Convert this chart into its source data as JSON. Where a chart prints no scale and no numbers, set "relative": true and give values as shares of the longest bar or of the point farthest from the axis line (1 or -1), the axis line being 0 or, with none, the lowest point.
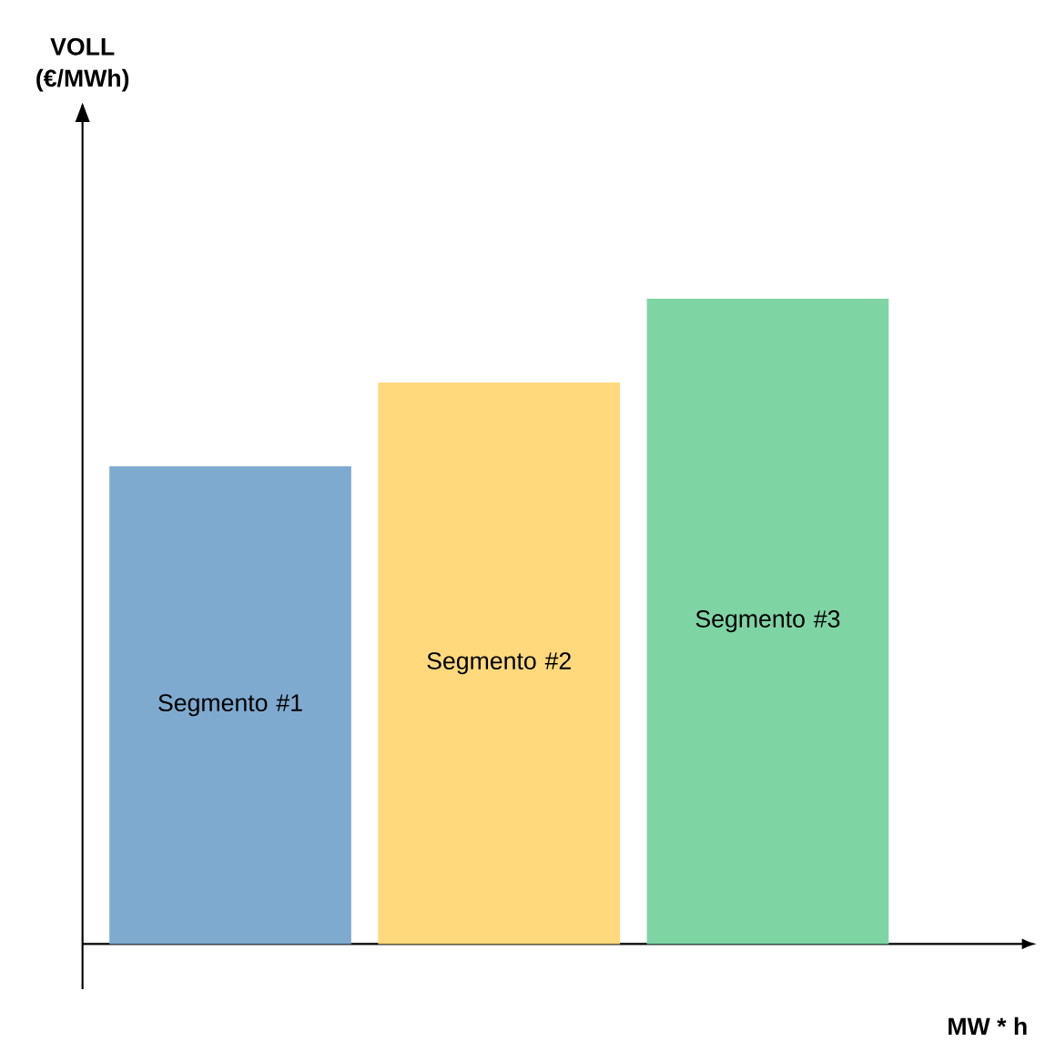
{
  "chart_data": {
    "type": "bar",
    "relative": true,
    "categories": [
      "Segmento #1",
      "Segmento #2",
      "Segmento #3"
    ],
    "values": [
      0.74,
      0.87,
      1.0
    ],
    "colors": [
      "#7faacf",
      "#ffd97c",
      "#7fd4a4"
    ],
    "xlabel": "MW * h",
    "annotations": [
      "VOLL (€/MWh)"
    ]
  }
}
